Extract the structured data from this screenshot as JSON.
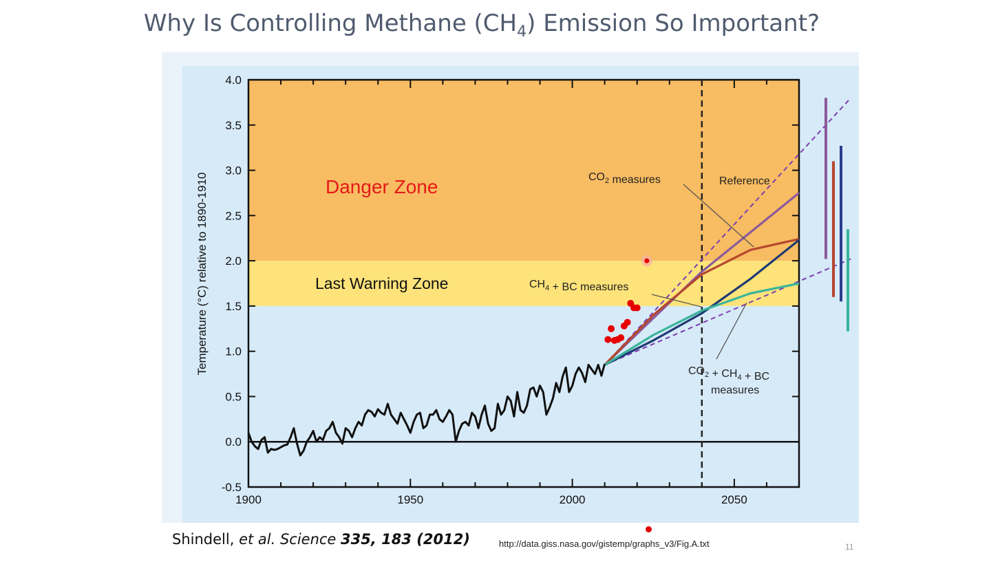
{
  "slide": {
    "title_pre": "Why Is Controlling Methane (CH",
    "title_sub": "4",
    "title_post": ") Emission So Important?",
    "number": "11"
  },
  "citation": {
    "authors": "Shindell,",
    "etal": " et al. Science ",
    "ref": "335, 183 (2012)"
  },
  "source_url": "http://data.giss.nasa.gov/gistemp/graphs_v3/Fig.A.txt",
  "chart_data": {
    "type": "line",
    "ylabel": "Temperature (°C) relative to 1890-1910",
    "xlabel": "",
    "xlim": [
      1900,
      2070
    ],
    "ylim": [
      -0.5,
      4.0
    ],
    "x_ticks": [
      1900,
      1950,
      2000,
      2050
    ],
    "y_ticks": [
      -0.5,
      0.0,
      0.5,
      1.0,
      1.5,
      2.0,
      2.5,
      3.0,
      3.5,
      4.0
    ],
    "zones": [
      {
        "name": "Danger Zone",
        "from": 2.0,
        "to": 4.0,
        "color": "#f8bc62",
        "label_color": "#e41a1a"
      },
      {
        "name": "Last Warning Zone",
        "from": 1.5,
        "to": 2.0,
        "color": "#fde37a",
        "label_color": "#111111"
      }
    ],
    "reference_line": {
      "x": 2040,
      "style": "dashed"
    },
    "observed": {
      "x": [
        1900,
        1901,
        1902,
        1903,
        1904,
        1905,
        1906,
        1907,
        1908,
        1909,
        1910,
        1911,
        1912,
        1913,
        1914,
        1915,
        1916,
        1917,
        1918,
        1919,
        1920,
        1921,
        1922,
        1923,
        1924,
        1925,
        1926,
        1927,
        1928,
        1929,
        1930,
        1931,
        1932,
        1933,
        1934,
        1935,
        1936,
        1937,
        1938,
        1939,
        1940,
        1941,
        1942,
        1943,
        1944,
        1945,
        1946,
        1947,
        1948,
        1949,
        1950,
        1951,
        1952,
        1953,
        1954,
        1955,
        1956,
        1957,
        1958,
        1959,
        1960,
        1961,
        1962,
        1963,
        1964,
        1965,
        1966,
        1967,
        1968,
        1969,
        1970,
        1971,
        1972,
        1973,
        1974,
        1975,
        1976,
        1977,
        1978,
        1979,
        1980,
        1981,
        1982,
        1983,
        1984,
        1985,
        1986,
        1987,
        1988,
        1989,
        1990,
        1991,
        1992,
        1993,
        1994,
        1995,
        1996,
        1997,
        1998,
        1999,
        2000,
        2001,
        2002,
        2003,
        2004,
        2005,
        2006,
        2007,
        2008,
        2009,
        2010
      ],
      "y": [
        0.1,
        0.0,
        -0.05,
        -0.08,
        0.02,
        0.05,
        -0.12,
        -0.08,
        -0.09,
        -0.08,
        -0.06,
        -0.04,
        -0.03,
        0.05,
        0.15,
        -0.02,
        -0.15,
        -0.1,
        0.0,
        0.05,
        0.12,
        0.0,
        0.05,
        0.02,
        0.12,
        0.15,
        0.22,
        0.1,
        0.05,
        -0.02,
        0.15,
        0.12,
        0.05,
        0.15,
        0.22,
        0.18,
        0.3,
        0.35,
        0.33,
        0.28,
        0.36,
        0.32,
        0.3,
        0.42,
        0.3,
        0.25,
        0.2,
        0.32,
        0.25,
        0.18,
        0.1,
        0.22,
        0.3,
        0.32,
        0.15,
        0.18,
        0.3,
        0.3,
        0.35,
        0.25,
        0.22,
        0.28,
        0.35,
        0.3,
        0.0,
        0.12,
        0.2,
        0.22,
        0.18,
        0.32,
        0.28,
        0.15,
        0.3,
        0.4,
        0.2,
        0.12,
        0.15,
        0.42,
        0.3,
        0.35,
        0.5,
        0.45,
        0.28,
        0.55,
        0.35,
        0.32,
        0.4,
        0.58,
        0.6,
        0.5,
        0.62,
        0.55,
        0.3,
        0.38,
        0.48,
        0.65,
        0.55,
        0.72,
        0.82,
        0.55,
        0.62,
        0.75,
        0.82,
        0.76,
        0.66,
        0.85,
        0.8,
        0.75,
        0.85,
        0.73,
        0.86
      ]
    },
    "observed_points": [
      {
        "x": 2011,
        "y": 1.13
      },
      {
        "x": 2012,
        "y": 1.25
      },
      {
        "x": 2013,
        "y": 1.12
      },
      {
        "x": 2014,
        "y": 1.13
      },
      {
        "x": 2015,
        "y": 1.15
      },
      {
        "x": 2016,
        "y": 1.28
      },
      {
        "x": 2017,
        "y": 1.32
      },
      {
        "x": 2018,
        "y": 1.53
      },
      {
        "x": 2019,
        "y": 1.48
      },
      {
        "x": 2020,
        "y": 1.48
      },
      {
        "x": 2023,
        "y": 2.0
      }
    ],
    "series": [
      {
        "name": "Reference",
        "color": "#8b5a9c",
        "x": [
          2010,
          2040,
          2070
        ],
        "y": [
          0.85,
          1.88,
          2.75
        ]
      },
      {
        "name": "CO₂ measures",
        "color": "#b5472f",
        "x": [
          2010,
          2025,
          2040,
          2055,
          2070
        ],
        "y": [
          0.85,
          1.4,
          1.85,
          2.12,
          2.24
        ]
      },
      {
        "name": "CH₄ + BC measures",
        "color": "#1e3a73",
        "x": [
          2010,
          2025,
          2040,
          2055,
          2070
        ],
        "y": [
          0.85,
          1.12,
          1.42,
          1.8,
          2.23
        ]
      },
      {
        "name": "CO₂ + CH₄ + BC measures",
        "color": "#3ab49a",
        "x": [
          2010,
          2025,
          2040,
          2055,
          2070
        ],
        "y": [
          0.85,
          1.18,
          1.45,
          1.64,
          1.75
        ]
      }
    ],
    "uncertainty_cone": {
      "color": "#7b3fb0",
      "x0": 2010,
      "y0": 0.85,
      "x1": 2086,
      "upper": 3.8,
      "lower": 2.02
    },
    "range_bars": [
      {
        "series": "Reference",
        "color": "#8b5a9c",
        "low": 2.02,
        "high": 3.8
      },
      {
        "series": "CO₂ measures",
        "color": "#b5472f",
        "low": 1.6,
        "high": 3.1
      },
      {
        "series": "CH₄ + BC measures",
        "color": "#2a3c8f",
        "low": 1.55,
        "high": 3.27
      },
      {
        "series": "CO₂ + CH₄ + BC measures",
        "color": "#3ab49a",
        "low": 1.22,
        "high": 2.35
      }
    ],
    "annotations": {
      "co2": "CO₂ measures",
      "ch4bc": "CH₄ + BC measures",
      "reference": "Reference",
      "combo_line1": "CO₂ + CH₄ + BC",
      "combo_line2": "measures"
    }
  }
}
